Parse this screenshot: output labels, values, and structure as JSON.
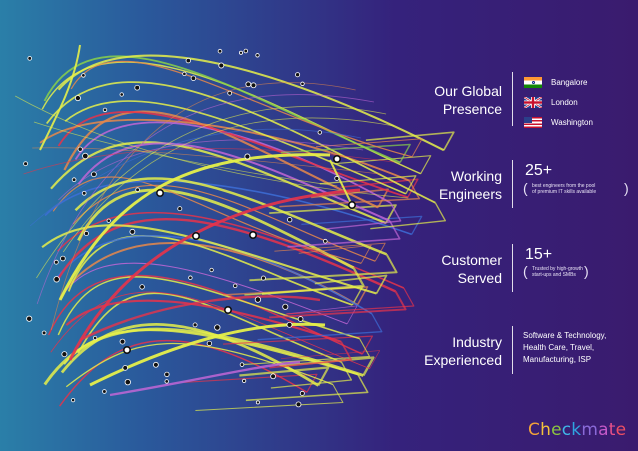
{
  "presence": {
    "title_line1": "Our Global",
    "title_line2": "Presence",
    "locations": [
      {
        "name": "Bangalore",
        "flag": "india-flag-icon"
      },
      {
        "name": "London",
        "flag": "uk-flag-icon"
      },
      {
        "name": "Washington",
        "flag": "us-flag-icon"
      }
    ]
  },
  "engineers": {
    "title_line1": "Working",
    "title_line2": "Engineers",
    "number": "25+",
    "desc_line1": "best engineers from the pool",
    "desc_line2": "of premium IT skills available"
  },
  "customers": {
    "title_line1": "Customer",
    "title_line2": "Served",
    "number": "15+",
    "desc_line1": "Trusted by high-growth",
    "desc_line2": "start-ups and SMBs"
  },
  "industry": {
    "title_line1": "Industry",
    "title_line2": "Experienced",
    "line1": "Software & Technology,",
    "line2": "Health Care, Travel,",
    "line3": "Manufacturing, ISP"
  },
  "brand": {
    "letters": [
      {
        "ch": "C",
        "color": "#f2a23a"
      },
      {
        "ch": "h",
        "color": "#f3c23c"
      },
      {
        "ch": "e",
        "color": "#8cc63f"
      },
      {
        "ch": "c",
        "color": "#3fb6e8"
      },
      {
        "ch": "k",
        "color": "#2fa4e0"
      },
      {
        "ch": "m",
        "color": "#8a6ad8"
      },
      {
        "ch": "a",
        "color": "#c45ac8"
      },
      {
        "ch": "t",
        "color": "#e8508a"
      },
      {
        "ch": "e",
        "color": "#ee4f63"
      }
    ]
  },
  "colors": {
    "line_yellow": "#e6f04a",
    "line_red": "#e8334a",
    "line_orange": "#e8884a",
    "line_blue": "#3d6fd8",
    "line_purple": "#c266d6",
    "line_green": "#8ad14a"
  }
}
